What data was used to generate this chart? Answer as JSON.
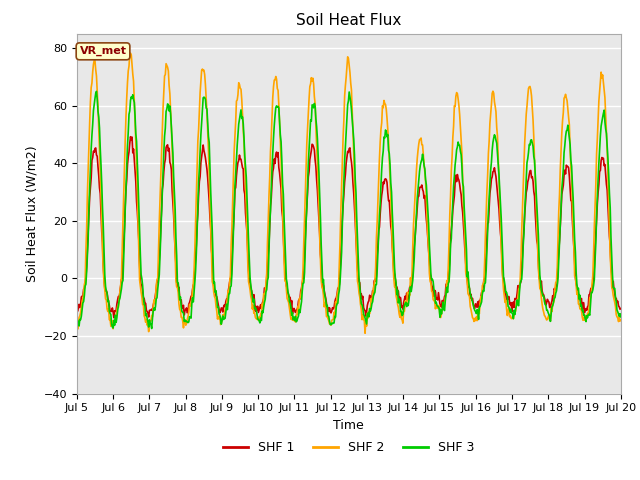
{
  "title": "Soil Heat Flux",
  "xlabel": "Time",
  "ylabel": "Soil Heat Flux (W/m2)",
  "ylim": [
    -40,
    85
  ],
  "yticks": [
    -40,
    -20,
    0,
    20,
    40,
    60,
    80
  ],
  "xtick_labels": [
    "Jul 5",
    "Jul 6",
    "Jul 7",
    "Jul 8",
    "Jul 9",
    "Jul 10",
    "Jul 11",
    "Jul 12",
    "Jul 13",
    "Jul 14",
    "Jul 15",
    "Jul 16",
    "Jul 17",
    "Jul 18",
    "Jul 19",
    "Jul 20"
  ],
  "colors": {
    "SHF1": "#cc0000",
    "SHF2": "#ffa500",
    "SHF3": "#00cc00"
  },
  "legend_labels": [
    "SHF 1",
    "SHF 2",
    "SHF 3"
  ],
  "annotation_text": "VR_met",
  "plot_bg": "#e8e8e8",
  "fig_bg": "#ffffff",
  "grid_color": "#ffffff",
  "line_width": 1.2,
  "n_days": 15,
  "n_per_day": 48
}
